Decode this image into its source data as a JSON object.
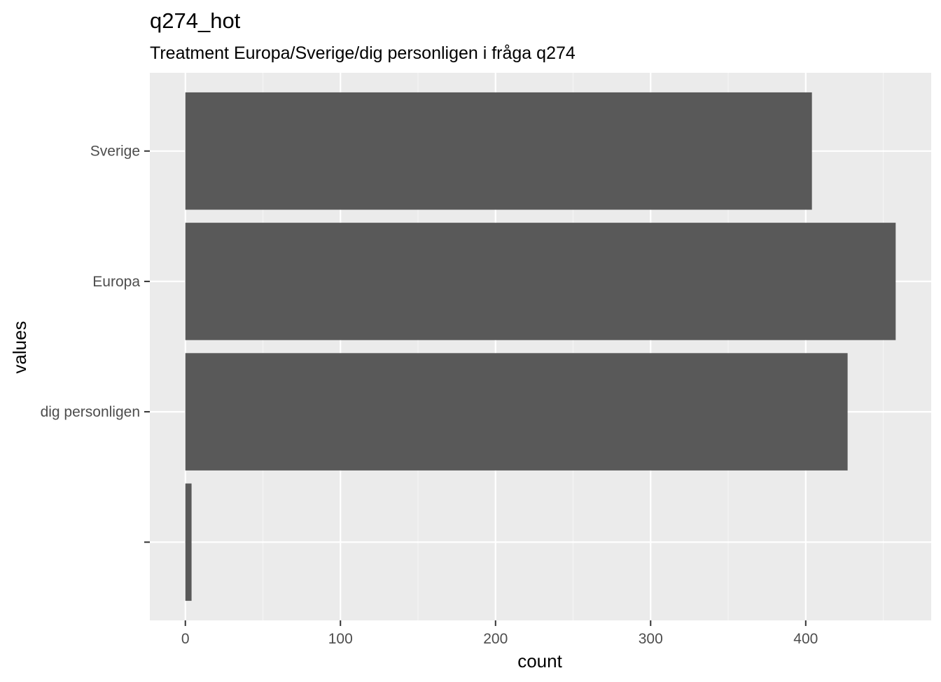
{
  "chart_data": {
    "type": "bar",
    "orientation": "horizontal",
    "title": "q274_hot",
    "subtitle": "Treatment Europa/Sverige/dig personligen i fråga q274",
    "xlabel": "count",
    "ylabel": "values",
    "categories": [
      "Sverige",
      "Europa",
      "dig personligen",
      ""
    ],
    "values": [
      404,
      458,
      427,
      4
    ],
    "xlim": [
      -22.9,
      480.9
    ],
    "xticks": [
      0,
      100,
      200,
      300,
      400
    ],
    "xtick_labels": [
      "0",
      "100",
      "200",
      "300",
      "400"
    ],
    "grid": true,
    "colors": {
      "bar": "#595959",
      "panel": "#ebebeb",
      "grid_major": "#ffffff",
      "grid_minor": "#f5f5f5",
      "tick": "#333333"
    }
  }
}
